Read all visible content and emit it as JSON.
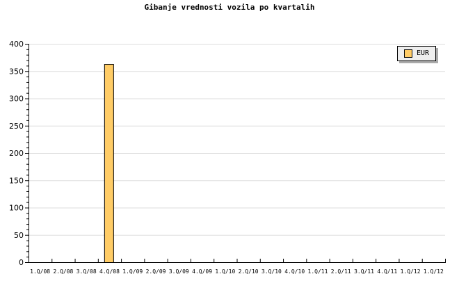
{
  "chart_data": {
    "type": "bar",
    "title": "Gibanje vrednosti vozila po kvartalih",
    "xlabel": "",
    "ylabel": "",
    "categories": [
      "1.Q/08",
      "2.Q/08",
      "3.Q/08",
      "4.Q/08",
      "1.Q/09",
      "2.Q/09",
      "3.Q/09",
      "4.Q/09",
      "1.Q/10",
      "2.Q/10",
      "3.Q/10",
      "4.Q/10",
      "1.Q/11",
      "2.Q/11",
      "3.Q/11",
      "4.Q/11",
      "1.Q/12",
      "1.Q/12"
    ],
    "series": [
      {
        "name": "EUR",
        "color": "#ffcc66",
        "values": [
          0,
          0,
          0,
          363,
          0,
          0,
          0,
          0,
          0,
          0,
          0,
          0,
          0,
          0,
          0,
          0,
          0,
          0
        ]
      }
    ],
    "ylim": [
      0,
      400
    ],
    "yticks": [
      0,
      50,
      100,
      150,
      200,
      250,
      300,
      350,
      400
    ],
    "grid": true,
    "legend": "top-right"
  }
}
